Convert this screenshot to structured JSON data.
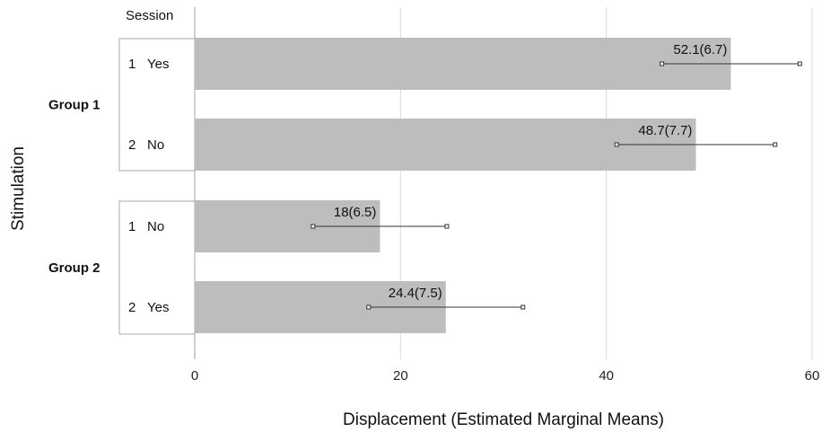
{
  "chart_data": {
    "type": "bar",
    "orientation": "horizontal",
    "xlabel": "Displacement (Estimated Marginal Means)",
    "ylabel": "Stimulation",
    "column_header": "Session",
    "xlim": [
      0,
      60
    ],
    "xticks": [
      0,
      20,
      40,
      60
    ],
    "grid": true,
    "bar_color": "#bdbdbd",
    "groups": [
      {
        "name": "Group 1",
        "rows": [
          {
            "session": "1",
            "stimulation": "Yes",
            "value": 52.1,
            "error": 6.7,
            "label": "52.1(6.7)"
          },
          {
            "session": "2",
            "stimulation": "No",
            "value": 48.7,
            "error": 7.7,
            "label": "48.7(7.7)"
          }
        ]
      },
      {
        "name": "Group 2",
        "rows": [
          {
            "session": "1",
            "stimulation": "No",
            "value": 18,
            "error": 6.5,
            "label": "18(6.5)"
          },
          {
            "session": "2",
            "stimulation": "Yes",
            "value": 24.4,
            "error": 7.5,
            "label": "24.4(7.5)"
          }
        ]
      }
    ]
  }
}
